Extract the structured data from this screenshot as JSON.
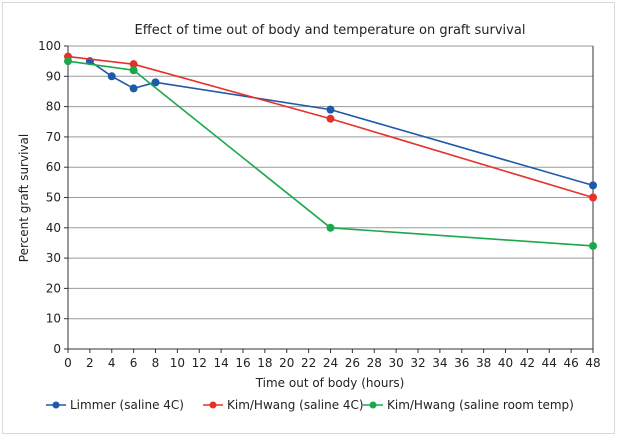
{
  "chart_data": {
    "type": "line",
    "title": "Effect of time out of body and temperature on graft survival",
    "xlabel": "Time out of body (hours)",
    "ylabel": "Percent graft survival",
    "xlim": [
      0,
      48
    ],
    "ylim": [
      0,
      100
    ],
    "xticks": [
      0,
      2,
      4,
      6,
      8,
      10,
      12,
      14,
      16,
      18,
      20,
      22,
      24,
      26,
      28,
      30,
      32,
      34,
      36,
      38,
      40,
      42,
      44,
      46,
      48
    ],
    "yticks": [
      0,
      10,
      20,
      30,
      40,
      50,
      60,
      70,
      80,
      90,
      100
    ],
    "grid": "horizontal",
    "legend": "bottom",
    "series": [
      {
        "name": "Limmer (saline 4C)",
        "color": "#1f5aa8",
        "x": [
          2,
          4,
          6,
          8,
          24,
          48
        ],
        "y": [
          95,
          90,
          86,
          88,
          79,
          54
        ]
      },
      {
        "name": "Kim/Hwang (saline 4C)",
        "color": "#e8302a",
        "x": [
          0,
          6,
          24,
          48
        ],
        "y": [
          96.5,
          94,
          76,
          50
        ]
      },
      {
        "name": "Kim/Hwang (saline room temp)",
        "color": "#1aa84a",
        "x": [
          0,
          6,
          24,
          48
        ],
        "y": [
          95,
          92,
          40,
          34
        ]
      }
    ]
  }
}
